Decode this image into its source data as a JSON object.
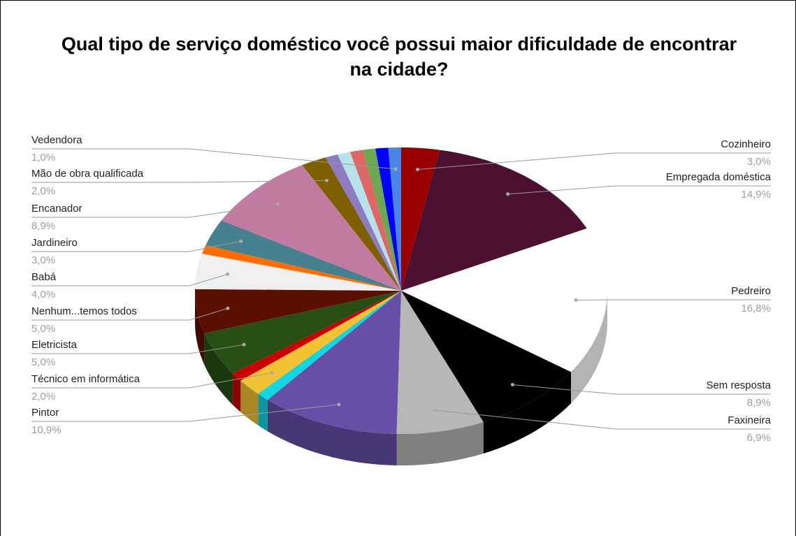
{
  "chart_data": {
    "type": "pie",
    "title": "Qual tipo de serviço doméstico você possui maior dificuldade de encontrar na cidade?",
    "three_d": true,
    "categories": [
      "Cozinheiro",
      "Empregada doméstica",
      "Pedreiro",
      "Sem resposta",
      "Faxineira",
      "Pintor",
      null,
      "Técnico em informática",
      null,
      "Eletricista",
      "Nenhum...temos todos",
      "Babá",
      null,
      "Jardineiro",
      "Encanador",
      "Mão de obra qualificada",
      null,
      null,
      null,
      null,
      null,
      "Vedendora"
    ],
    "values": [
      3.0,
      14.9,
      16.8,
      8.9,
      6.9,
      10.9,
      1.0,
      2.0,
      1.0,
      5.0,
      5.0,
      4.0,
      1.0,
      3.0,
      8.9,
      2.0,
      1.0,
      1.0,
      1.0,
      1.0,
      1.0,
      1.0
    ],
    "value_labels": [
      "3,0%",
      "14,9%",
      "16,8%",
      "8,9%",
      "6,9%",
      "10,9%",
      null,
      "2,0%",
      null,
      "5,0%",
      "5,0%",
      "4,0%",
      null,
      "3,0%",
      "8,9%",
      "2,0%",
      null,
      null,
      null,
      null,
      null,
      "1,0%"
    ],
    "colors": [
      "#990000",
      "#4c1130",
      "#ffffff",
      "#000000",
      "#b7b7b7",
      "#674ea7",
      "#12d6e0",
      "#f1c232",
      "#cc0000",
      "#274e13",
      "#5b0f00",
      "#efefef",
      "#ff6d01",
      "#45818e",
      "#c27ba0",
      "#7f6000",
      "#8e7cc3",
      "#b6e3ea",
      "#e06666",
      "#6aa84f",
      "#0000ff",
      "#4a86e8"
    ]
  }
}
